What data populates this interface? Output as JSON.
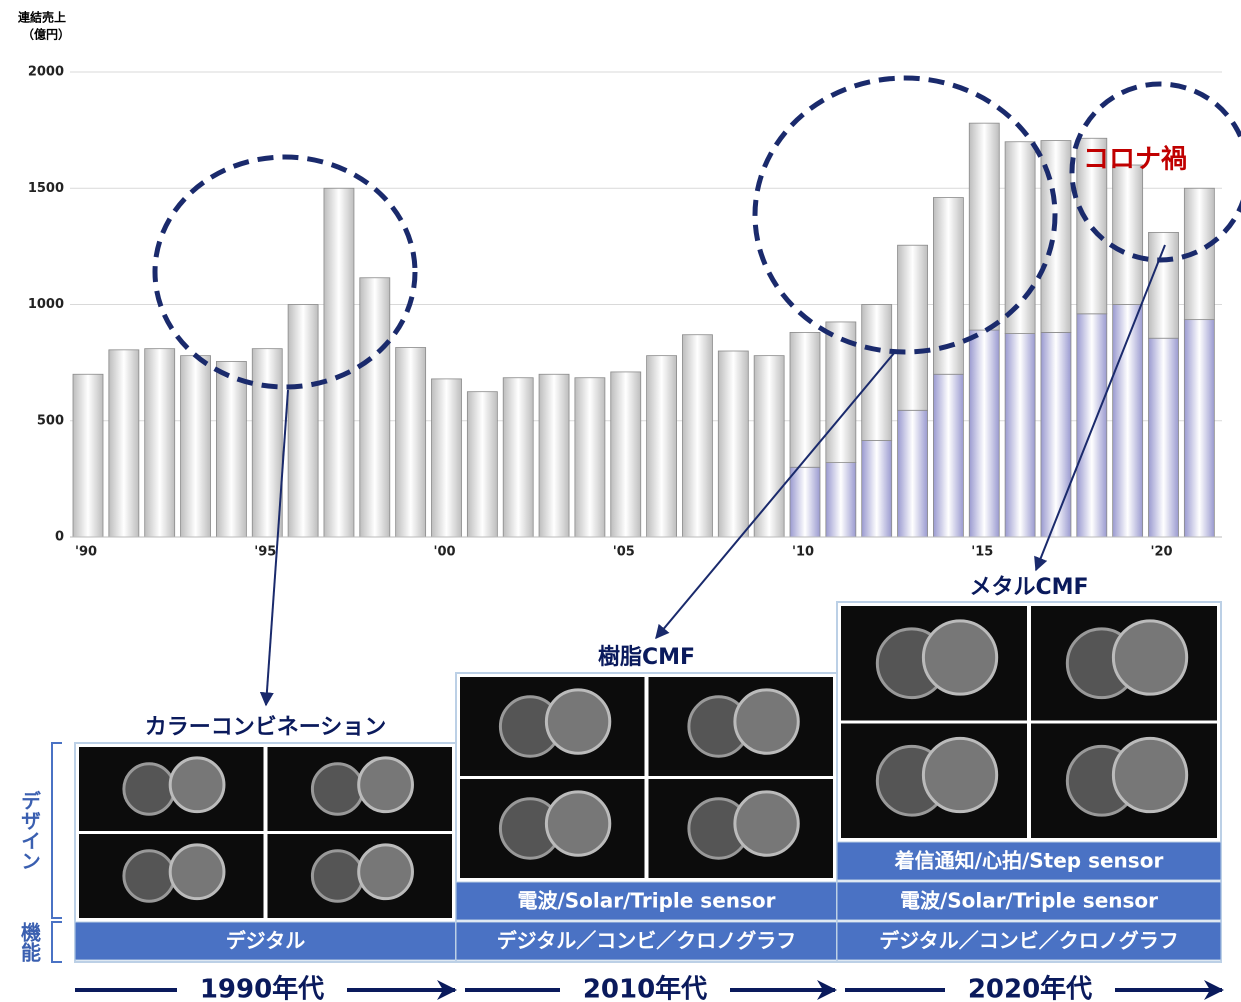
{
  "chart_data": {
    "type": "bar",
    "stacked": true,
    "ylabel": [
      "連結売上",
      "（億円）"
    ],
    "categories": [
      "'90",
      null,
      null,
      null,
      null,
      "'95",
      null,
      null,
      null,
      null,
      "'00",
      null,
      null,
      null,
      null,
      "'05",
      null,
      null,
      null,
      null,
      "'10",
      null,
      null,
      null,
      null,
      "'15",
      null,
      null,
      null,
      null,
      "'20",
      null
    ],
    "series": [
      {
        "color": "#9a9ad0",
        "values": [
          null,
          null,
          null,
          null,
          null,
          null,
          null,
          null,
          null,
          null,
          null,
          null,
          null,
          null,
          null,
          null,
          null,
          null,
          null,
          null,
          300,
          320,
          415,
          545,
          700,
          890,
          875,
          880,
          960,
          1000,
          855,
          935
        ]
      },
      {
        "color": "#bdbdbd",
        "values": [
          700,
          805,
          810,
          780,
          755,
          810,
          1000,
          1500,
          1115,
          815,
          680,
          625,
          685,
          700,
          685,
          710,
          780,
          870,
          800,
          780,
          580,
          605,
          585,
          710,
          760,
          890,
          825,
          825,
          755,
          600,
          455,
          565
        ]
      }
    ],
    "ylim": [
      0,
      2000
    ],
    "yticks": [
      0,
      500,
      1000,
      1500,
      2000
    ],
    "grid": true,
    "annotation": "コロナ禍"
  },
  "row_labels": [
    "デザイン",
    "機能"
  ],
  "panels": [
    {
      "title": "カラーコンビネーション",
      "features": [
        "デジタル"
      ]
    },
    {
      "title": "樹脂CMF",
      "features": [
        "電波/Solar/Triple sensor",
        "デジタル／コンビ／クロノグラフ"
      ]
    },
    {
      "title": "メタルCMF",
      "features": [
        "着信通知/心拍/Step sensor",
        "電波/Solar/Triple sensor",
        "デジタル／コンビ／クロノグラフ"
      ]
    }
  ],
  "timeline": [
    "1990年代",
    "2010年代",
    "2020年代"
  ]
}
